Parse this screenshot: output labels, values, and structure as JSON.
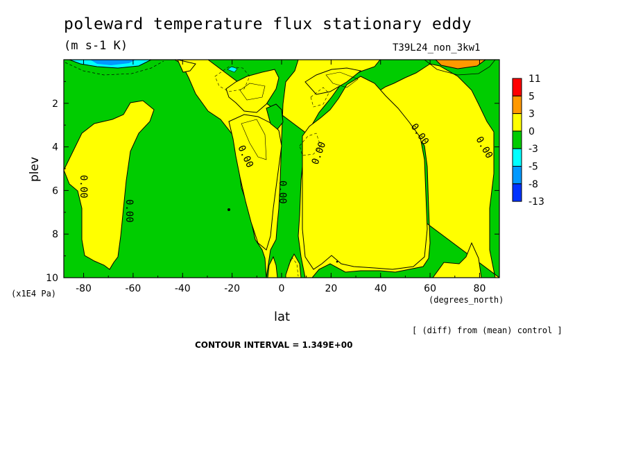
{
  "chart_data": {
    "type": "contour",
    "title": "poleward temperature flux stationary eddy",
    "units": "(m s-1 K)",
    "run_label": "T39L24_non_3kw1",
    "xlabel": "lat",
    "x_units": "(degrees_north)",
    "ylabel": "plev",
    "y_units": "(x1E4 Pa)",
    "xlim": [
      -88,
      88
    ],
    "ylim": [
      10,
      0
    ],
    "x_ticks": [
      "-80",
      "-60",
      "-40",
      "-20",
      "0",
      "20",
      "40",
      "60",
      "80"
    ],
    "y_ticks": [
      "2",
      "4",
      "6",
      "8",
      "10"
    ],
    "note": "[ (diff) from (mean) control ]",
    "contour_interval": "CONTOUR INTERVAL = 1.349E+00",
    "contour_labels": [
      "0.00",
      "0.00",
      "0.00",
      "0.00",
      "0.00",
      "0.00",
      "0.00"
    ],
    "colorbar": {
      "labels": [
        "11",
        "5",
        "3",
        "0",
        "-3",
        "-5",
        "-8",
        "-13"
      ],
      "colors": [
        "#ff0000",
        "#ff9900",
        "#ffff00",
        "#00cc00",
        "#00ffff",
        "#0099ff",
        "#0033ff"
      ]
    }
  }
}
